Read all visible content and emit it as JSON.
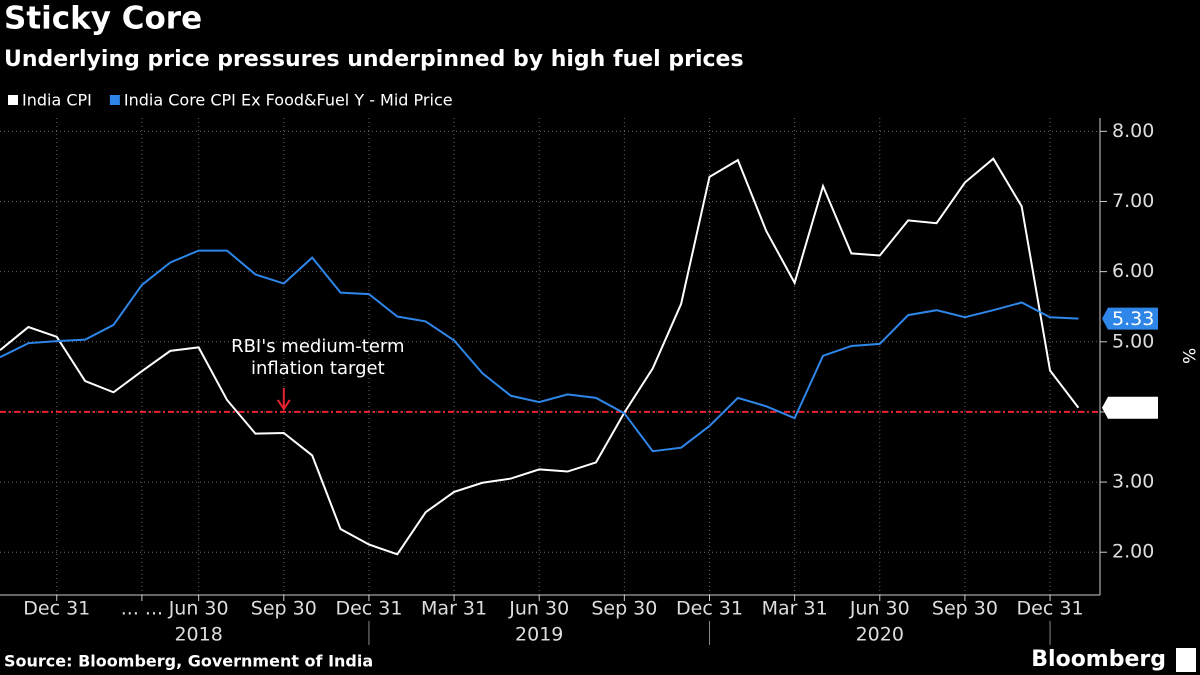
{
  "chart_data": {
    "type": "line",
    "title": "Sticky Core",
    "subtitle": "Underlying price pressures underpinned by high fuel prices",
    "y_axis_label": "%",
    "source": "Source: Bloomberg, Government of India",
    "brand": "Bloomberg",
    "series": [
      {
        "name": "India CPI",
        "color": "#ffffff",
        "values": [
          4.88,
          5.21,
          5.07,
          4.44,
          4.28,
          4.58,
          4.87,
          4.92,
          4.17,
          3.69,
          3.7,
          3.38,
          2.33,
          2.11,
          1.97,
          2.57,
          2.86,
          2.99,
          3.05,
          3.18,
          3.15,
          3.28,
          3.99,
          4.62,
          5.54,
          7.35,
          7.59,
          6.58,
          5.84,
          7.22,
          6.26,
          6.23,
          6.73,
          6.69,
          7.27,
          7.61,
          6.93,
          4.59,
          4.06
        ]
      },
      {
        "name": "India Core CPI Ex Food&Fuel Y - Mid Price",
        "color": "#2e86e8",
        "values": [
          4.78,
          4.98,
          5.01,
          5.03,
          5.24,
          5.81,
          6.13,
          6.3,
          6.3,
          5.96,
          5.83,
          6.2,
          5.7,
          5.68,
          5.36,
          5.29,
          5.02,
          4.55,
          4.23,
          4.14,
          4.25,
          4.2,
          3.98,
          3.44,
          3.49,
          3.8,
          4.2,
          4.08,
          3.91,
          4.8,
          4.94,
          4.97,
          5.38,
          5.45,
          5.35,
          5.45,
          5.56,
          5.35,
          5.33
        ]
      }
    ],
    "target": {
      "value": 4,
      "color": "#e8232f",
      "label_lines": [
        "RBI's medium-term",
        "inflation target"
      ],
      "arrow_x": 10
    },
    "xlim": [
      0,
      38.76
    ],
    "xticks": [
      {
        "value": 2,
        "label": "Dec 31"
      },
      {
        "value": 5,
        "label": "... ..."
      },
      {
        "value": 7,
        "label": "Jun 30"
      },
      {
        "value": 10,
        "label": "Sep 30"
      },
      {
        "value": 13,
        "label": "Dec 31"
      },
      {
        "value": 16,
        "label": "Mar 31"
      },
      {
        "value": 19,
        "label": "Jun 30"
      },
      {
        "value": 22,
        "label": "Sep 30"
      },
      {
        "value": 25,
        "label": "Dec 31"
      },
      {
        "value": 28,
        "label": "Mar 31"
      },
      {
        "value": 31,
        "label": "Jun 30"
      },
      {
        "value": 34,
        "label": "Sep 30"
      },
      {
        "value": 37,
        "label": "Dec 31"
      }
    ],
    "year_labels": [
      {
        "value": 7,
        "label": "2018"
      },
      {
        "value": 19,
        "label": "2019"
      },
      {
        "value": 31,
        "label": "2020"
      }
    ],
    "ylim": [
      1.39,
      8.19
    ],
    "yticks": [
      {
        "value": 2,
        "label": "2.00"
      },
      {
        "value": 3,
        "label": "3.00"
      },
      {
        "value": 4,
        "label": "4.00"
      },
      {
        "value": 5,
        "label": "5.00"
      },
      {
        "value": 6,
        "label": "6.00"
      },
      {
        "value": 7,
        "label": "7.00"
      },
      {
        "value": 8,
        "label": "8.00"
      }
    ],
    "grid": true
  }
}
